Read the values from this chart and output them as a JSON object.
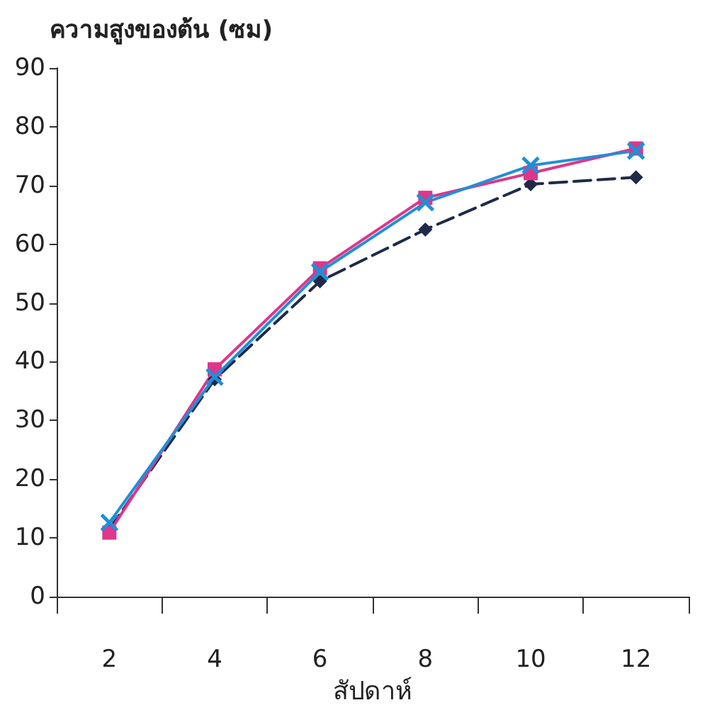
{
  "chart_data": {
    "type": "line",
    "ylabel": "ความสูงของต้น (ซม)",
    "xlabel": "สัปดาห์",
    "categories": [
      "2",
      "4",
      "6",
      "8",
      "10",
      "12"
    ],
    "series": [
      {
        "color": "#1f2a48",
        "marker": "diamond",
        "line_style": "dashed",
        "values": [
          11.5,
          37,
          53.7,
          62.5,
          70.2,
          71.4
        ]
      },
      {
        "color": "#e0358a",
        "marker": "square",
        "line_style": "solid",
        "values": [
          10.9,
          38.7,
          55.9,
          67.9,
          72.1,
          76.3
        ]
      },
      {
        "color": "#1f8fd6",
        "marker": "cross",
        "line_style": "solid",
        "values": [
          12.6,
          37.4,
          55.3,
          67.1,
          73.4,
          75.9
        ]
      }
    ],
    "ylim": [
      0,
      90
    ],
    "yticks": [
      0,
      10,
      20,
      30,
      40,
      50,
      60,
      70,
      80,
      90
    ]
  }
}
